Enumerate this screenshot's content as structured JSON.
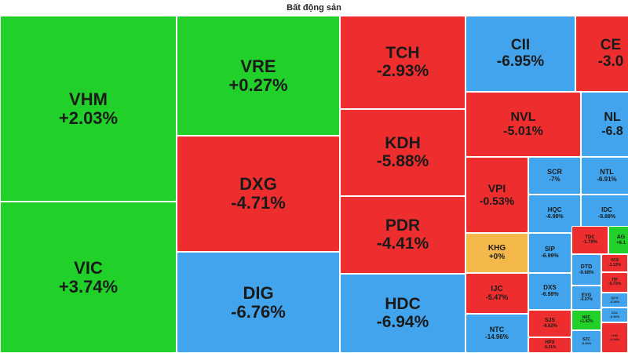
{
  "title": "Bất động sản",
  "colors": {
    "up": "#22d02a",
    "down": "#ee2e2e",
    "floor": "#42a4ec",
    "ref": "#f4b84a"
  },
  "chart_data": {
    "type": "treemap",
    "title": "Bất động sản",
    "tiles": [
      {
        "sym": "VHM",
        "chg": "+2.03%",
        "status": "up"
      },
      {
        "sym": "VIC",
        "chg": "+3.74%",
        "status": "up"
      },
      {
        "sym": "VRE",
        "chg": "+0.27%",
        "status": "up"
      },
      {
        "sym": "DXG",
        "chg": "-4.71%",
        "status": "down"
      },
      {
        "sym": "DIG",
        "chg": "-6.76%",
        "status": "floor"
      },
      {
        "sym": "TCH",
        "chg": "-2.93%",
        "status": "down"
      },
      {
        "sym": "KDH",
        "chg": "-5.88%",
        "status": "down"
      },
      {
        "sym": "PDR",
        "chg": "-4.41%",
        "status": "down"
      },
      {
        "sym": "HDC",
        "chg": "-6.94%",
        "status": "floor"
      },
      {
        "sym": "CII",
        "chg": "-6.95%",
        "status": "floor"
      },
      {
        "sym": "CE",
        "chg": "-3.0",
        "status": "down"
      },
      {
        "sym": "NVL",
        "chg": "-5.01%",
        "status": "down"
      },
      {
        "sym": "NL",
        "chg": "-6.8",
        "status": "floor"
      },
      {
        "sym": "VPI",
        "chg": "-0.53%",
        "status": "down"
      },
      {
        "sym": "SCR",
        "chg": "-7%",
        "status": "floor"
      },
      {
        "sym": "NTL",
        "chg": "-6.91%",
        "status": "floor"
      },
      {
        "sym": "HQC",
        "chg": "-6.98%",
        "status": "floor"
      },
      {
        "sym": "IDC",
        "chg": "-9.88%",
        "status": "floor"
      },
      {
        "sym": "KHG",
        "chg": "+0%",
        "status": "ref"
      },
      {
        "sym": "SIP",
        "chg": "-6.99%",
        "status": "floor"
      },
      {
        "sym": "TDC",
        "chg": "-1.79%",
        "status": "down"
      },
      {
        "sym": "AG",
        "chg": "+6.1",
        "status": "up"
      },
      {
        "sym": "DTD",
        "chg": "-9.68%",
        "status": "floor"
      },
      {
        "sym": "VCS",
        "chg": "-1.12%",
        "status": "down"
      },
      {
        "sym": "IJC",
        "chg": "-5.47%",
        "status": "down"
      },
      {
        "sym": "DXS",
        "chg": "-6.98%",
        "status": "floor"
      },
      {
        "sym": "TIP",
        "chg": "-5.71%",
        "status": "down"
      },
      {
        "sym": "EVG",
        "chg": "-6.97%",
        "status": "floor"
      },
      {
        "sym": "QCG",
        "chg": "-6.94%",
        "status": "floor"
      },
      {
        "sym": "SJS",
        "chg": "-4.62%",
        "status": "down"
      },
      {
        "sym": "NTC",
        "chg": "-14.96%",
        "status": "floor"
      },
      {
        "sym": "NRC",
        "chg": "+1.42%",
        "status": "up"
      },
      {
        "sym": "CCL",
        "chg": "-6.92%",
        "status": "floor"
      },
      {
        "sym": "HPX",
        "chg": "-5.21%",
        "status": "down"
      },
      {
        "sym": "SZC",
        "chg": "-6.94%",
        "status": "floor"
      },
      {
        "sym": "LHG",
        "chg": "-6.94%",
        "status": "down"
      }
    ]
  }
}
